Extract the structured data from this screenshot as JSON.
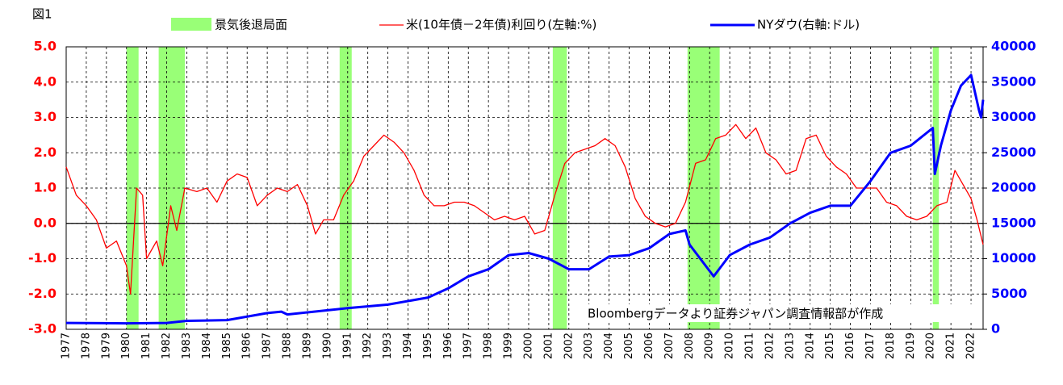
{
  "chart_data": {
    "type": "line",
    "figure_label": "図1",
    "recession_label": "景気後退局面",
    "recession_color": "#99ff77",
    "recessions": [
      [
        1980.0,
        1980.6
      ],
      [
        1981.6,
        1982.9
      ],
      [
        1990.6,
        1991.2
      ],
      [
        2001.2,
        2001.9
      ],
      [
        2007.9,
        2009.5
      ],
      [
        2020.1,
        2020.4
      ]
    ],
    "annotation": "Bloombergデータより証券ジャパン調査情報部が作成",
    "xlim": [
      1977,
      2022.6
    ],
    "xticks": [
      1977,
      1978,
      1979,
      1980,
      1981,
      1982,
      1983,
      1984,
      1985,
      1986,
      1987,
      1988,
      1989,
      1990,
      1991,
      1992,
      1993,
      1994,
      1995,
      1996,
      1997,
      1998,
      1999,
      2000,
      2001,
      2002,
      2003,
      2004,
      2005,
      2006,
      2007,
      2008,
      2009,
      2010,
      2011,
      2012,
      2013,
      2014,
      2015,
      2016,
      2017,
      2018,
      2019,
      2020,
      2021,
      2022
    ],
    "ylim": [
      -3,
      5
    ],
    "yticks": [
      {
        "value": -3,
        "label": "-3.0"
      },
      {
        "value": -2,
        "label": "-2.0"
      },
      {
        "value": -1,
        "label": "-1.0"
      },
      {
        "value": 0,
        "label": "0.0"
      },
      {
        "value": 1,
        "label": "1.0"
      },
      {
        "value": 2,
        "label": "2.0"
      },
      {
        "value": 3,
        "label": "3.0"
      },
      {
        "value": 4,
        "label": "4.0"
      },
      {
        "value": 5,
        "label": "5.0"
      }
    ],
    "y2lim": [
      0,
      40000
    ],
    "y2ticks": [
      0,
      5000,
      10000,
      15000,
      20000,
      25000,
      30000,
      35000,
      40000
    ],
    "grid": true,
    "series": [
      {
        "name": "米(10年債－2年債)利回り(左軸:%)",
        "color": "#ff0000",
        "width": 1.3,
        "x": [
          1977.0,
          1977.5,
          1978.0,
          1978.5,
          1979.0,
          1979.5,
          1980.0,
          1980.2,
          1980.5,
          1980.8,
          1981.0,
          1981.5,
          1981.8,
          1982.2,
          1982.5,
          1982.9,
          1983.5,
          1984.0,
          1984.5,
          1985.0,
          1985.5,
          1986.0,
          1986.5,
          1987.0,
          1987.5,
          1988.0,
          1988.5,
          1989.0,
          1989.4,
          1989.8,
          1990.3,
          1990.8,
          1991.3,
          1991.8,
          1992.3,
          1992.8,
          1993.3,
          1993.8,
          1994.3,
          1994.8,
          1995.3,
          1995.8,
          1996.3,
          1996.8,
          1997.3,
          1997.8,
          1998.3,
          1998.8,
          1999.3,
          1999.8,
          2000.3,
          2000.8,
          2001.3,
          2001.8,
          2002.3,
          2002.8,
          2003.3,
          2003.8,
          2004.3,
          2004.8,
          2005.3,
          2005.8,
          2006.3,
          2006.8,
          2007.3,
          2007.8,
          2008.3,
          2008.8,
          2009.3,
          2009.8,
          2010.3,
          2010.8,
          2011.3,
          2011.8,
          2012.3,
          2012.8,
          2013.3,
          2013.8,
          2014.3,
          2014.8,
          2015.3,
          2015.8,
          2016.3,
          2016.8,
          2017.3,
          2017.8,
          2018.3,
          2018.8,
          2019.3,
          2019.8,
          2020.3,
          2020.8,
          2021.2,
          2021.6,
          2022.0,
          2022.3,
          2022.6
        ],
        "values": [
          1.6,
          0.8,
          0.5,
          0.1,
          -0.7,
          -0.5,
          -1.2,
          -2.0,
          1.0,
          0.8,
          -1.0,
          -0.5,
          -1.2,
          0.5,
          -0.2,
          1.0,
          0.9,
          1.0,
          0.6,
          1.2,
          1.4,
          1.3,
          0.5,
          0.8,
          1.0,
          0.9,
          1.1,
          0.5,
          -0.3,
          0.1,
          0.1,
          0.8,
          1.2,
          1.9,
          2.2,
          2.5,
          2.3,
          2.0,
          1.5,
          0.8,
          0.5,
          0.5,
          0.6,
          0.6,
          0.5,
          0.3,
          0.1,
          0.2,
          0.1,
          0.2,
          -0.3,
          -0.2,
          0.8,
          1.7,
          2.0,
          2.1,
          2.2,
          2.4,
          2.2,
          1.6,
          0.7,
          0.2,
          0.0,
          -0.1,
          0.0,
          0.6,
          1.7,
          1.8,
          2.4,
          2.5,
          2.8,
          2.4,
          2.7,
          2.0,
          1.8,
          1.4,
          1.5,
          2.4,
          2.5,
          1.9,
          1.6,
          1.4,
          1.0,
          1.0,
          1.0,
          0.6,
          0.5,
          0.2,
          0.1,
          0.2,
          0.5,
          0.6,
          1.5,
          1.1,
          0.7,
          0.1,
          -0.6
        ]
      },
      {
        "name": "NYダウ(右軸:ドル)",
        "color": "#0000ff",
        "width": 3,
        "axis": "y2",
        "x": [
          1977.0,
          1980.0,
          1982.0,
          1983.0,
          1985.0,
          1987.0,
          1987.7,
          1988.0,
          1990.0,
          1991.0,
          1993.0,
          1995.0,
          1996.0,
          1997.0,
          1998.0,
          1999.0,
          2000.0,
          2001.0,
          2002.0,
          2003.0,
          2004.0,
          2005.0,
          2006.0,
          2007.0,
          2007.8,
          2008.0,
          2009.2,
          2010.0,
          2011.0,
          2012.0,
          2013.0,
          2014.0,
          2015.0,
          2016.0,
          2017.0,
          2018.0,
          2019.0,
          2020.1,
          2020.2,
          2020.5,
          2021.0,
          2021.5,
          2022.0,
          2022.4,
          2022.5,
          2022.6
        ],
        "values": [
          900,
          850,
          900,
          1200,
          1300,
          2300,
          2500,
          2100,
          2700,
          3000,
          3500,
          4500,
          5800,
          7500,
          8500,
          10500,
          10800,
          10000,
          8500,
          8500,
          10300,
          10500,
          11500,
          13500,
          14000,
          12000,
          7500,
          10500,
          12000,
          13000,
          15000,
          16500,
          17500,
          17500,
          21000,
          25000,
          26000,
          28500,
          22000,
          26000,
          31000,
          34500,
          36000,
          31000,
          30000,
          32500
        ]
      }
    ]
  }
}
